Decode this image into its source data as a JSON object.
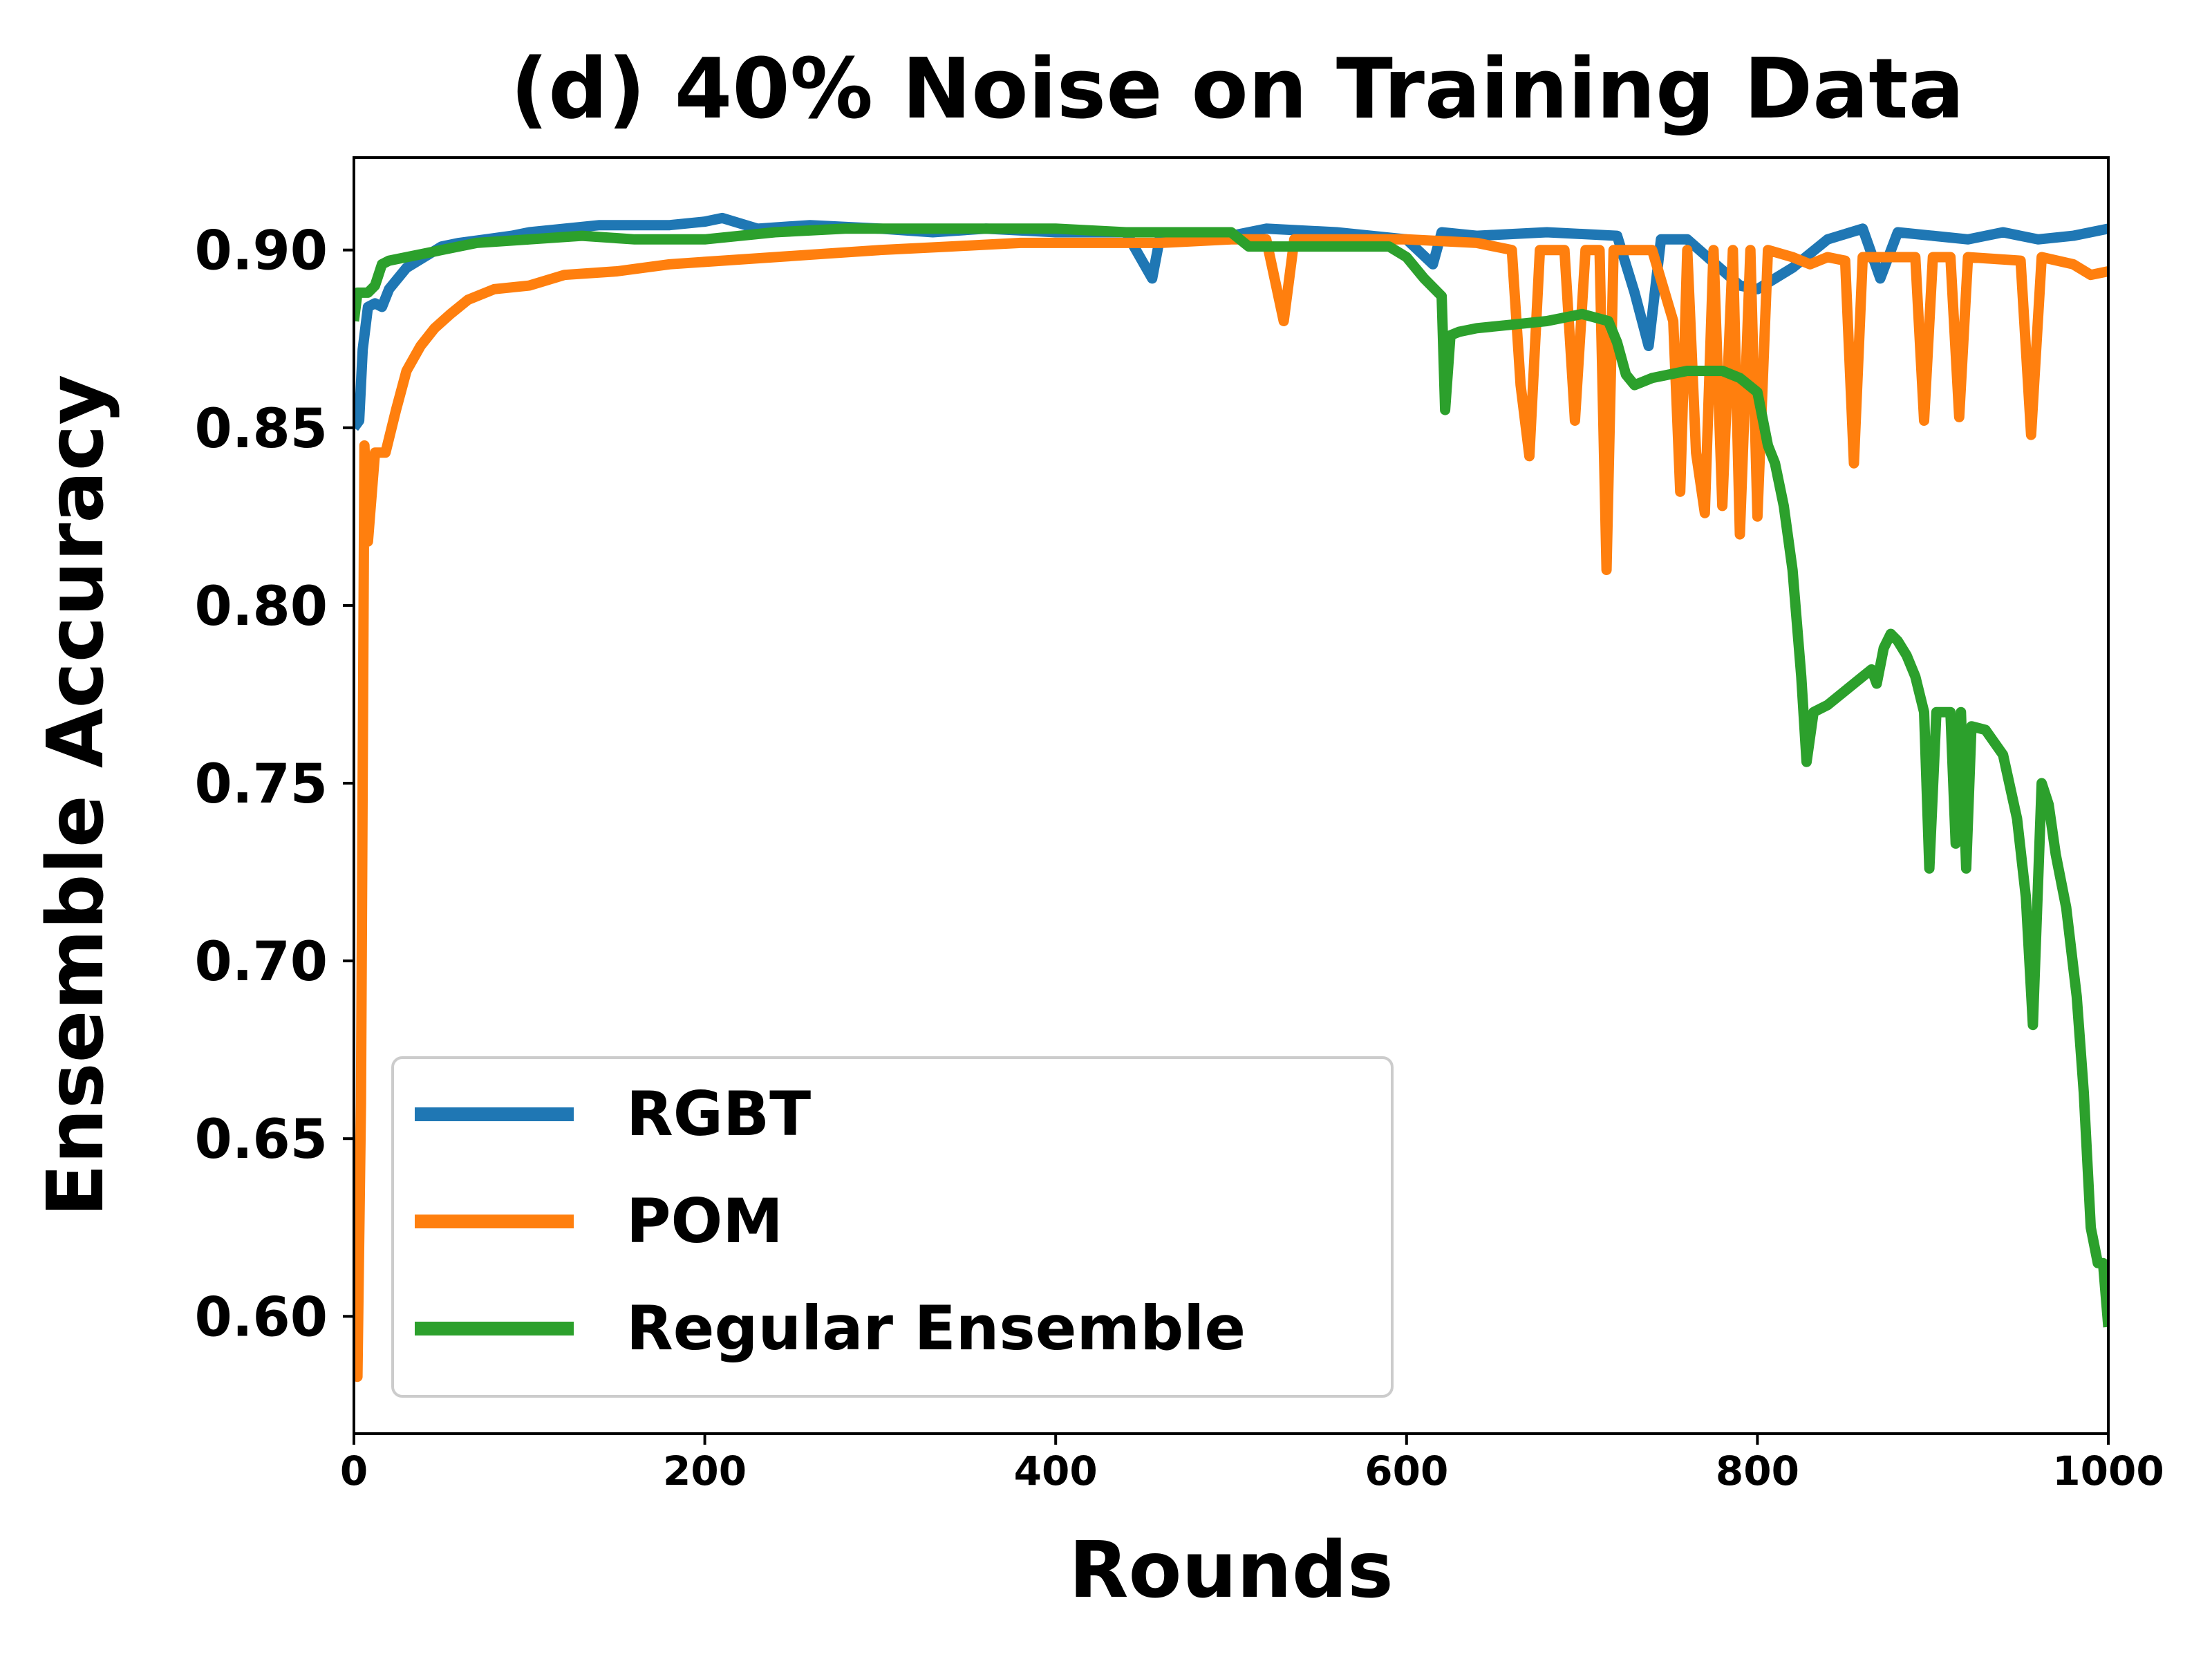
{
  "chart_data": {
    "type": "line",
    "title": "(d) 40% Noise on Training Data",
    "xlabel": "Rounds",
    "ylabel": "Ensemble Accuracy",
    "xlim": [
      0,
      1000
    ],
    "ylim": [
      0.567,
      0.926
    ],
    "xticks": [
      0,
      200,
      400,
      600,
      800,
      1000
    ],
    "xtick_labels": [
      "0",
      "200",
      "400",
      "600",
      "800",
      "1000"
    ],
    "yticks": [
      0.6,
      0.65,
      0.7,
      0.75,
      0.8,
      0.85,
      0.9
    ],
    "ytick_labels": [
      "0.60",
      "0.65",
      "0.70",
      "0.75",
      "0.80",
      "0.85",
      "0.90"
    ],
    "grid": false,
    "legend": {
      "position": "lower-left",
      "entries": [
        "RGBT",
        "POM",
        "Regular Ensemble"
      ]
    },
    "series": [
      {
        "name": "RGBT",
        "color": "#1f77b4",
        "points": [
          [
            0,
            0.85
          ],
          [
            3,
            0.852
          ],
          [
            5,
            0.872
          ],
          [
            8,
            0.884
          ],
          [
            12,
            0.885
          ],
          [
            16,
            0.884
          ],
          [
            20,
            0.889
          ],
          [
            30,
            0.895
          ],
          [
            40,
            0.898
          ],
          [
            50,
            0.901
          ],
          [
            60,
            0.902
          ],
          [
            75,
            0.903
          ],
          [
            90,
            0.904
          ],
          [
            100,
            0.905
          ],
          [
            120,
            0.906
          ],
          [
            140,
            0.907
          ],
          [
            160,
            0.907
          ],
          [
            180,
            0.907
          ],
          [
            200,
            0.908
          ],
          [
            210,
            0.909
          ],
          [
            230,
            0.906
          ],
          [
            260,
            0.907
          ],
          [
            300,
            0.906
          ],
          [
            330,
            0.905
          ],
          [
            360,
            0.906
          ],
          [
            400,
            0.905
          ],
          [
            440,
            0.905
          ],
          [
            455,
            0.892
          ],
          [
            460,
            0.905
          ],
          [
            500,
            0.904
          ],
          [
            520,
            0.906
          ],
          [
            560,
            0.905
          ],
          [
            600,
            0.903
          ],
          [
            615,
            0.896
          ],
          [
            620,
            0.905
          ],
          [
            640,
            0.904
          ],
          [
            680,
            0.905
          ],
          [
            720,
            0.904
          ],
          [
            730,
            0.888
          ],
          [
            738,
            0.873
          ],
          [
            745,
            0.903
          ],
          [
            760,
            0.903
          ],
          [
            790,
            0.89
          ],
          [
            800,
            0.889
          ],
          [
            820,
            0.895
          ],
          [
            840,
            0.903
          ],
          [
            860,
            0.906
          ],
          [
            870,
            0.892
          ],
          [
            880,
            0.905
          ],
          [
            900,
            0.904
          ],
          [
            920,
            0.903
          ],
          [
            940,
            0.905
          ],
          [
            960,
            0.903
          ],
          [
            980,
            0.904
          ],
          [
            1000,
            0.906
          ]
        ]
      },
      {
        "name": "POM",
        "color": "#ff7f0e",
        "points": [
          [
            0,
            0.59
          ],
          [
            2,
            0.583
          ],
          [
            4,
            0.66
          ],
          [
            6,
            0.845
          ],
          [
            8,
            0.818
          ],
          [
            12,
            0.843
          ],
          [
            18,
            0.843
          ],
          [
            24,
            0.855
          ],
          [
            30,
            0.866
          ],
          [
            38,
            0.873
          ],
          [
            46,
            0.878
          ],
          [
            55,
            0.882
          ],
          [
            65,
            0.886
          ],
          [
            80,
            0.889
          ],
          [
            100,
            0.89
          ],
          [
            120,
            0.893
          ],
          [
            150,
            0.894
          ],
          [
            180,
            0.896
          ],
          [
            210,
            0.897
          ],
          [
            240,
            0.898
          ],
          [
            270,
            0.899
          ],
          [
            300,
            0.9
          ],
          [
            340,
            0.901
          ],
          [
            380,
            0.902
          ],
          [
            420,
            0.902
          ],
          [
            460,
            0.902
          ],
          [
            500,
            0.903
          ],
          [
            520,
            0.903
          ],
          [
            530,
            0.88
          ],
          [
            536,
            0.903
          ],
          [
            560,
            0.903
          ],
          [
            600,
            0.903
          ],
          [
            640,
            0.902
          ],
          [
            660,
            0.9
          ],
          [
            665,
            0.862
          ],
          [
            670,
            0.842
          ],
          [
            676,
            0.9
          ],
          [
            690,
            0.9
          ],
          [
            696,
            0.852
          ],
          [
            702,
            0.9
          ],
          [
            710,
            0.9
          ],
          [
            714,
            0.81
          ],
          [
            718,
            0.9
          ],
          [
            740,
            0.9
          ],
          [
            752,
            0.88
          ],
          [
            756,
            0.832
          ],
          [
            760,
            0.9
          ],
          [
            765,
            0.843
          ],
          [
            770,
            0.826
          ],
          [
            775,
            0.9
          ],
          [
            780,
            0.828
          ],
          [
            786,
            0.9
          ],
          [
            790,
            0.82
          ],
          [
            796,
            0.9
          ],
          [
            800,
            0.825
          ],
          [
            806,
            0.9
          ],
          [
            820,
            0.898
          ],
          [
            830,
            0.896
          ],
          [
            840,
            0.898
          ],
          [
            850,
            0.897
          ],
          [
            855,
            0.84
          ],
          [
            860,
            0.898
          ],
          [
            880,
            0.898
          ],
          [
            890,
            0.898
          ],
          [
            895,
            0.852
          ],
          [
            900,
            0.898
          ],
          [
            910,
            0.898
          ],
          [
            915,
            0.853
          ],
          [
            920,
            0.898
          ],
          [
            950,
            0.897
          ],
          [
            956,
            0.848
          ],
          [
            962,
            0.898
          ],
          [
            980,
            0.896
          ],
          [
            990,
            0.893
          ],
          [
            1000,
            0.894
          ]
        ]
      },
      {
        "name": "Regular Ensemble",
        "color": "#2ca02c",
        "points": [
          [
            0,
            0.88
          ],
          [
            2,
            0.888
          ],
          [
            8,
            0.888
          ],
          [
            12,
            0.89
          ],
          [
            16,
            0.896
          ],
          [
            20,
            0.897
          ],
          [
            30,
            0.898
          ],
          [
            50,
            0.9
          ],
          [
            70,
            0.902
          ],
          [
            100,
            0.903
          ],
          [
            130,
            0.904
          ],
          [
            160,
            0.903
          ],
          [
            200,
            0.903
          ],
          [
            240,
            0.905
          ],
          [
            280,
            0.906
          ],
          [
            320,
            0.906
          ],
          [
            360,
            0.906
          ],
          [
            400,
            0.906
          ],
          [
            440,
            0.905
          ],
          [
            480,
            0.905
          ],
          [
            500,
            0.905
          ],
          [
            510,
            0.901
          ],
          [
            520,
            0.901
          ],
          [
            560,
            0.901
          ],
          [
            590,
            0.901
          ],
          [
            600,
            0.898
          ],
          [
            610,
            0.892
          ],
          [
            620,
            0.887
          ],
          [
            622,
            0.855
          ],
          [
            625,
            0.876
          ],
          [
            630,
            0.877
          ],
          [
            640,
            0.878
          ],
          [
            660,
            0.879
          ],
          [
            680,
            0.88
          ],
          [
            700,
            0.882
          ],
          [
            715,
            0.88
          ],
          [
            720,
            0.874
          ],
          [
            725,
            0.865
          ],
          [
            730,
            0.862
          ],
          [
            740,
            0.864
          ],
          [
            760,
            0.866
          ],
          [
            780,
            0.866
          ],
          [
            790,
            0.864
          ],
          [
            800,
            0.86
          ],
          [
            806,
            0.845
          ],
          [
            810,
            0.84
          ],
          [
            815,
            0.828
          ],
          [
            820,
            0.81
          ],
          [
            825,
            0.78
          ],
          [
            828,
            0.756
          ],
          [
            832,
            0.77
          ],
          [
            840,
            0.772
          ],
          [
            850,
            0.776
          ],
          [
            860,
            0.78
          ],
          [
            865,
            0.782
          ],
          [
            868,
            0.778
          ],
          [
            872,
            0.788
          ],
          [
            876,
            0.792
          ],
          [
            880,
            0.79
          ],
          [
            885,
            0.786
          ],
          [
            890,
            0.78
          ],
          [
            895,
            0.77
          ],
          [
            898,
            0.726
          ],
          [
            902,
            0.77
          ],
          [
            910,
            0.77
          ],
          [
            913,
            0.733
          ],
          [
            916,
            0.77
          ],
          [
            919,
            0.726
          ],
          [
            922,
            0.766
          ],
          [
            930,
            0.765
          ],
          [
            940,
            0.758
          ],
          [
            948,
            0.74
          ],
          [
            953,
            0.718
          ],
          [
            957,
            0.682
          ],
          [
            962,
            0.75
          ],
          [
            966,
            0.744
          ],
          [
            970,
            0.73
          ],
          [
            976,
            0.715
          ],
          [
            982,
            0.69
          ],
          [
            986,
            0.663
          ],
          [
            990,
            0.625
          ],
          [
            994,
            0.615
          ],
          [
            997,
            0.615
          ],
          [
            1000,
            0.597
          ]
        ]
      }
    ]
  }
}
